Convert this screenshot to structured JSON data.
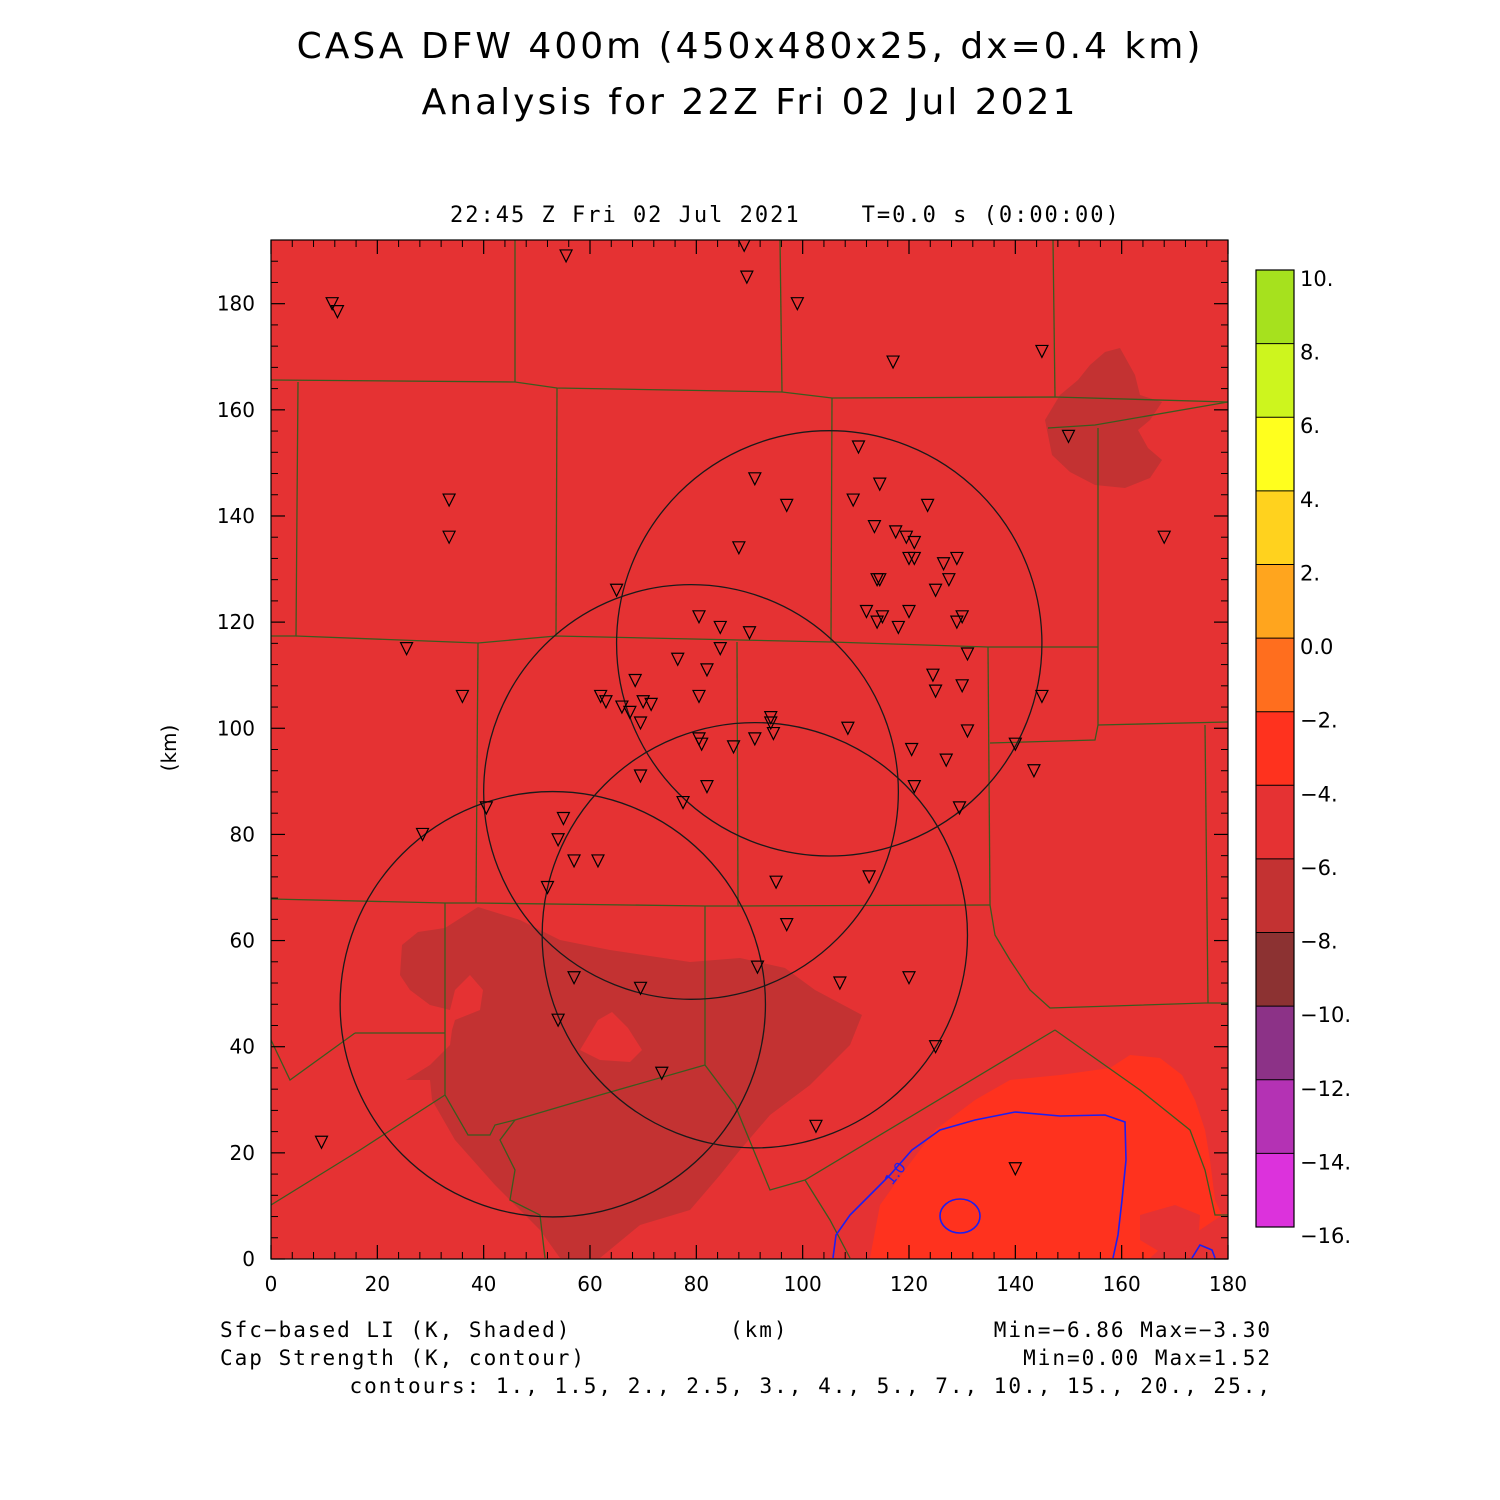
{
  "header": {
    "title_line1": "CASA DFW 400m (450x480x25, dx=0.4 km)",
    "title_line2": "Analysis for 22Z Fri 02 Jul 2021",
    "valid_time": "22:45 Z Fri 02 Jul 2021    T=0.0 s (0:00:00)"
  },
  "axes": {
    "x_label": "(km)",
    "y_label": "(km)",
    "x_range": [
      0,
      180
    ],
    "y_range": [
      0,
      192
    ],
    "x_ticks": [
      "0",
      "20",
      "40",
      "60",
      "80",
      "100",
      "120",
      "140",
      "160",
      "180"
    ],
    "y_ticks": [
      "0",
      "20",
      "40",
      "60",
      "80",
      "100",
      "120",
      "140",
      "160",
      "180"
    ]
  },
  "colorbar": {
    "labels": [
      "10.",
      "8.",
      "6.",
      "4.",
      "2.",
      "0.0",
      "−2.",
      "−4.",
      "−6.",
      "−8.",
      "−10.",
      "−12.",
      "−14.",
      "−16."
    ],
    "colors": [
      "#a6e11e",
      "#cdf51e",
      "#ffff1e",
      "#ffd21e",
      "#ffa51e",
      "#ff6e1e",
      "#ff321e",
      "#e53233",
      "#c33232",
      "#8c3232",
      "#8c3287",
      "#b432b4",
      "#dc32dc"
    ]
  },
  "field": {
    "background_color": "#e53233",
    "dark_color": "#c33232",
    "warm_color": "#ff321e",
    "contour_label": "1.0",
    "contour_color": "#1e1ef0"
  },
  "footer": {
    "shaded_label": "Sfc−based LI (K, Shaded)",
    "contour_label": "Cap Strength (K, contour)",
    "x_units": "(km)",
    "shaded_minmax": "Min=−6.86 Max=−3.30",
    "contour_minmax": "Min=0.00 Max=1.52",
    "contour_levels": "contours: 1., 1.5, 2., 2.5, 3., 4., 5., 7., 10., 15., 20., 25.,"
  },
  "radar_rings": [
    {
      "x": 105,
      "y": 116,
      "r": 40
    },
    {
      "x": 79,
      "y": 88,
      "r": 39
    },
    {
      "x": 91,
      "y": 61,
      "r": 40
    },
    {
      "x": 53,
      "y": 48,
      "r": 40
    }
  ],
  "stations": [
    [
      11.5,
      180
    ],
    [
      12.5,
      178.5
    ],
    [
      55.5,
      189
    ],
    [
      89,
      191
    ],
    [
      89.5,
      185
    ],
    [
      99,
      180
    ],
    [
      117,
      169
    ],
    [
      145,
      171
    ],
    [
      150,
      155
    ],
    [
      168,
      136
    ],
    [
      33.5,
      143
    ],
    [
      33.5,
      136
    ],
    [
      25.5,
      115
    ],
    [
      36,
      106
    ],
    [
      28.5,
      80
    ],
    [
      40.5,
      85
    ],
    [
      91,
      147
    ],
    [
      88,
      134
    ],
    [
      97,
      142
    ],
    [
      110.5,
      153
    ],
    [
      109.5,
      143
    ],
    [
      114.5,
      146
    ],
    [
      113.5,
      138
    ],
    [
      117.5,
      137
    ],
    [
      123.5,
      142
    ],
    [
      119.5,
      136
    ],
    [
      121,
      135
    ],
    [
      120,
      132
    ],
    [
      121,
      132
    ],
    [
      126.5,
      131
    ],
    [
      129,
      132
    ],
    [
      114,
      128
    ],
    [
      114.5,
      128
    ],
    [
      125,
      126
    ],
    [
      127.5,
      128
    ],
    [
      65,
      126
    ],
    [
      80.5,
      121
    ],
    [
      84.5,
      119
    ],
    [
      90,
      118
    ],
    [
      112,
      122
    ],
    [
      114,
      120
    ],
    [
      115,
      121
    ],
    [
      118,
      119
    ],
    [
      120,
      122
    ],
    [
      130,
      121
    ],
    [
      129,
      120
    ],
    [
      76.5,
      113
    ],
    [
      82,
      111
    ],
    [
      84.5,
      115
    ],
    [
      131,
      114
    ],
    [
      124.5,
      110
    ],
    [
      125,
      107
    ],
    [
      130,
      108
    ],
    [
      62,
      106
    ],
    [
      63,
      105
    ],
    [
      66,
      104
    ],
    [
      67.5,
      103
    ],
    [
      70,
      105
    ],
    [
      71.5,
      104.5
    ],
    [
      68.5,
      109
    ],
    [
      69.5,
      101
    ],
    [
      80.5,
      106
    ],
    [
      94,
      102
    ],
    [
      94,
      101
    ],
    [
      94.5,
      99
    ],
    [
      91,
      98
    ],
    [
      108.5,
      100
    ],
    [
      80.5,
      98
    ],
    [
      81,
      97
    ],
    [
      87,
      96.5
    ],
    [
      120.5,
      96
    ],
    [
      131,
      99.5
    ],
    [
      127,
      94
    ],
    [
      69.5,
      91
    ],
    [
      77.5,
      86
    ],
    [
      82,
      89
    ],
    [
      121,
      89
    ],
    [
      129.5,
      85
    ],
    [
      54,
      79
    ],
    [
      55,
      83
    ],
    [
      57,
      75
    ],
    [
      61.5,
      75
    ],
    [
      52,
      70
    ],
    [
      95,
      71
    ],
    [
      112.5,
      72
    ],
    [
      97,
      63
    ],
    [
      91.5,
      55
    ],
    [
      57,
      53
    ],
    [
      69.5,
      51
    ],
    [
      107,
      52
    ],
    [
      120,
      53
    ],
    [
      140,
      97
    ],
    [
      143.5,
      92
    ],
    [
      145,
      106
    ],
    [
      54,
      45
    ],
    [
      73.5,
      35
    ],
    [
      102.5,
      25
    ],
    [
      125,
      40
    ],
    [
      140,
      17
    ],
    [
      9.5,
      22
    ]
  ]
}
